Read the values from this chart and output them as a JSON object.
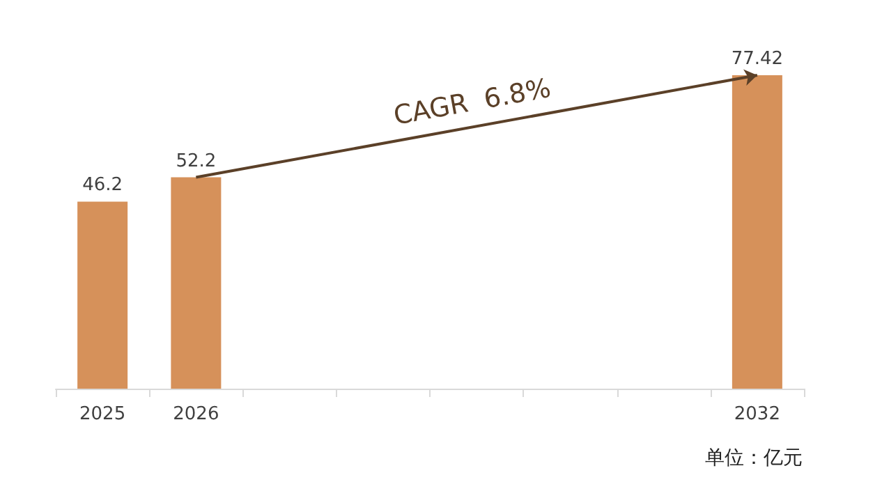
{
  "chart_data": {
    "type": "bar",
    "categories": [
      "2025",
      "2026",
      null,
      null,
      null,
      null,
      null,
      "2032"
    ],
    "values": [
      46.2,
      52.2,
      null,
      null,
      null,
      null,
      null,
      77.42
    ],
    "color": "#d6915a",
    "data_labels": true,
    "annotations": [
      "CAGR  6.8%",
      "单位：亿元"
    ]
  }
}
